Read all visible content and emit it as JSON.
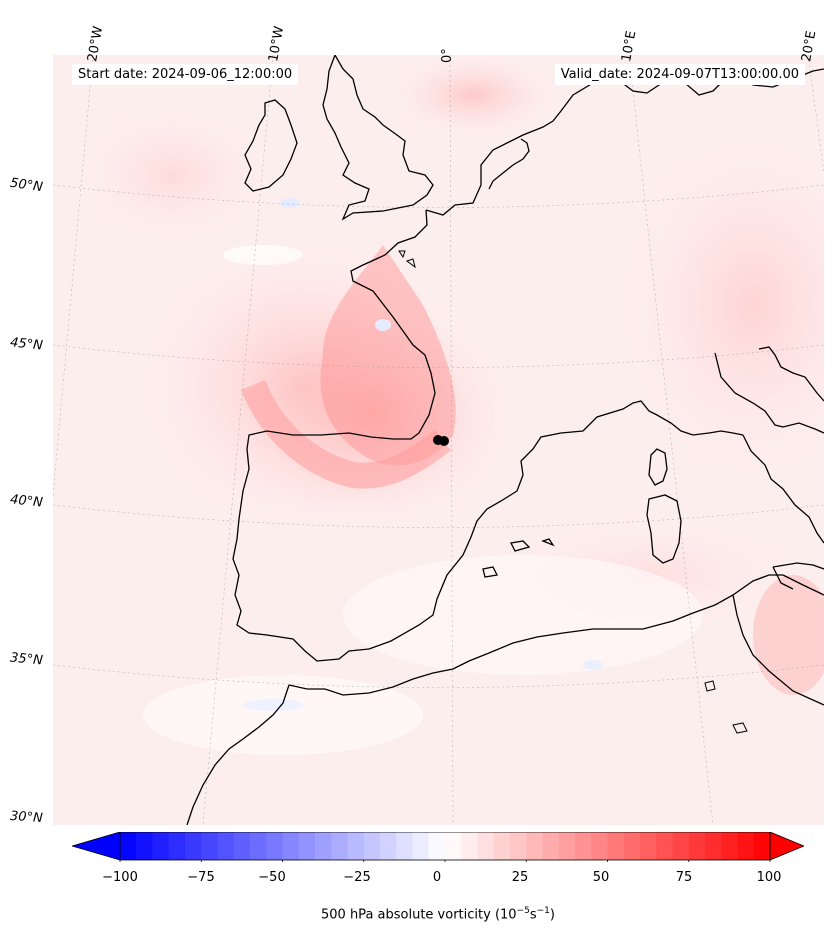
{
  "header": {
    "start_text": "Start date: 2024-09-06_12:00:00",
    "valid_text": "Valid_date: 2024-09-07T13:00:00.00"
  },
  "lon_labels": [
    "20°W",
    "10°W",
    "0°",
    "10°E",
    "20°E"
  ],
  "lat_labels": [
    "50°N",
    "45°N",
    "40°N",
    "35°N",
    "30°N"
  ],
  "colorbar": {
    "ticks": [
      "−100",
      "−75",
      "−50",
      "−25",
      "0",
      "25",
      "50",
      "75",
      "100"
    ],
    "label_main": "500 hPa absolute vorticity (10",
    "label_exp1": "−5",
    "label_mid": "s",
    "label_exp2": "−1",
    "label_end": ")",
    "range": [
      -100,
      100
    ],
    "low_color": "#0000ff",
    "mid_color": "#ffffff",
    "high_color": "#ff0000"
  },
  "marker": {
    "name": "low-center-marker",
    "color": "#000000"
  }
}
